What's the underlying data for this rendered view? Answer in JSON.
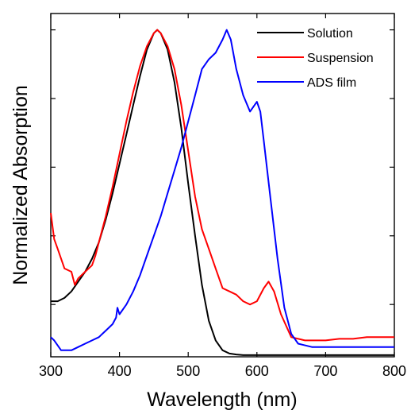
{
  "chart_data": {
    "type": "line",
    "title": "",
    "xlabel": "Wavelength (nm)",
    "ylabel": "Normalized Absorption",
    "xlim": [
      300,
      800
    ],
    "ylim": [
      0,
      1.05
    ],
    "x_ticks": [
      300,
      400,
      500,
      600,
      700,
      800
    ],
    "y_ticks": [
      0.16,
      0.37,
      0.58,
      0.79,
      1.0
    ],
    "y_tick_labels_shown": false,
    "grid": false,
    "legend_position": "top-right",
    "series": [
      {
        "name": "Solution",
        "color": "#000000",
        "x": [
          300,
          310,
          320,
          330,
          340,
          350,
          360,
          370,
          380,
          390,
          400,
          410,
          420,
          430,
          440,
          450,
          455,
          460,
          470,
          480,
          490,
          500,
          510,
          520,
          530,
          540,
          550,
          560,
          570,
          580,
          600,
          650,
          700,
          750,
          800
        ],
        "y": [
          0.17,
          0.17,
          0.18,
          0.2,
          0.23,
          0.26,
          0.3,
          0.35,
          0.42,
          0.5,
          0.59,
          0.68,
          0.77,
          0.86,
          0.94,
          0.99,
          1.0,
          0.99,
          0.94,
          0.84,
          0.7,
          0.53,
          0.37,
          0.22,
          0.11,
          0.05,
          0.02,
          0.01,
          0.007,
          0.005,
          0.005,
          0.005,
          0.005,
          0.005,
          0.005
        ]
      },
      {
        "name": "Suspension",
        "color": "#ff0000",
        "x": [
          300,
          305,
          310,
          320,
          330,
          335,
          340,
          350,
          360,
          365,
          370,
          380,
          390,
          400,
          410,
          420,
          430,
          440,
          450,
          455,
          460,
          470,
          480,
          490,
          500,
          510,
          520,
          530,
          540,
          550,
          560,
          570,
          580,
          590,
          600,
          610,
          617,
          625,
          635,
          650,
          670,
          700,
          720,
          740,
          760,
          780,
          800
        ],
        "y": [
          0.44,
          0.36,
          0.33,
          0.27,
          0.26,
          0.22,
          0.24,
          0.26,
          0.28,
          0.31,
          0.35,
          0.43,
          0.52,
          0.62,
          0.72,
          0.81,
          0.89,
          0.95,
          0.99,
          1.0,
          0.99,
          0.95,
          0.88,
          0.77,
          0.63,
          0.49,
          0.39,
          0.33,
          0.27,
          0.21,
          0.2,
          0.19,
          0.17,
          0.16,
          0.17,
          0.21,
          0.23,
          0.2,
          0.13,
          0.06,
          0.05,
          0.05,
          0.055,
          0.055,
          0.06,
          0.06,
          0.06
        ]
      },
      {
        "name": "ADS film",
        "color": "#0000ff",
        "x": [
          300,
          305,
          315,
          330,
          340,
          350,
          360,
          370,
          380,
          390,
          395,
          397,
          400,
          410,
          420,
          430,
          440,
          450,
          460,
          470,
          480,
          490,
          500,
          510,
          520,
          530,
          540,
          550,
          556,
          562,
          570,
          580,
          590,
          600,
          605,
          610,
          620,
          630,
          640,
          650,
          660,
          680,
          700,
          750,
          800
        ],
        "y": [
          0.06,
          0.05,
          0.02,
          0.02,
          0.03,
          0.04,
          0.05,
          0.06,
          0.08,
          0.1,
          0.12,
          0.15,
          0.13,
          0.16,
          0.2,
          0.25,
          0.31,
          0.37,
          0.43,
          0.5,
          0.57,
          0.64,
          0.72,
          0.8,
          0.88,
          0.91,
          0.93,
          0.97,
          1.0,
          0.97,
          0.88,
          0.8,
          0.75,
          0.78,
          0.75,
          0.66,
          0.48,
          0.3,
          0.15,
          0.07,
          0.04,
          0.03,
          0.03,
          0.03,
          0.03
        ]
      }
    ]
  }
}
